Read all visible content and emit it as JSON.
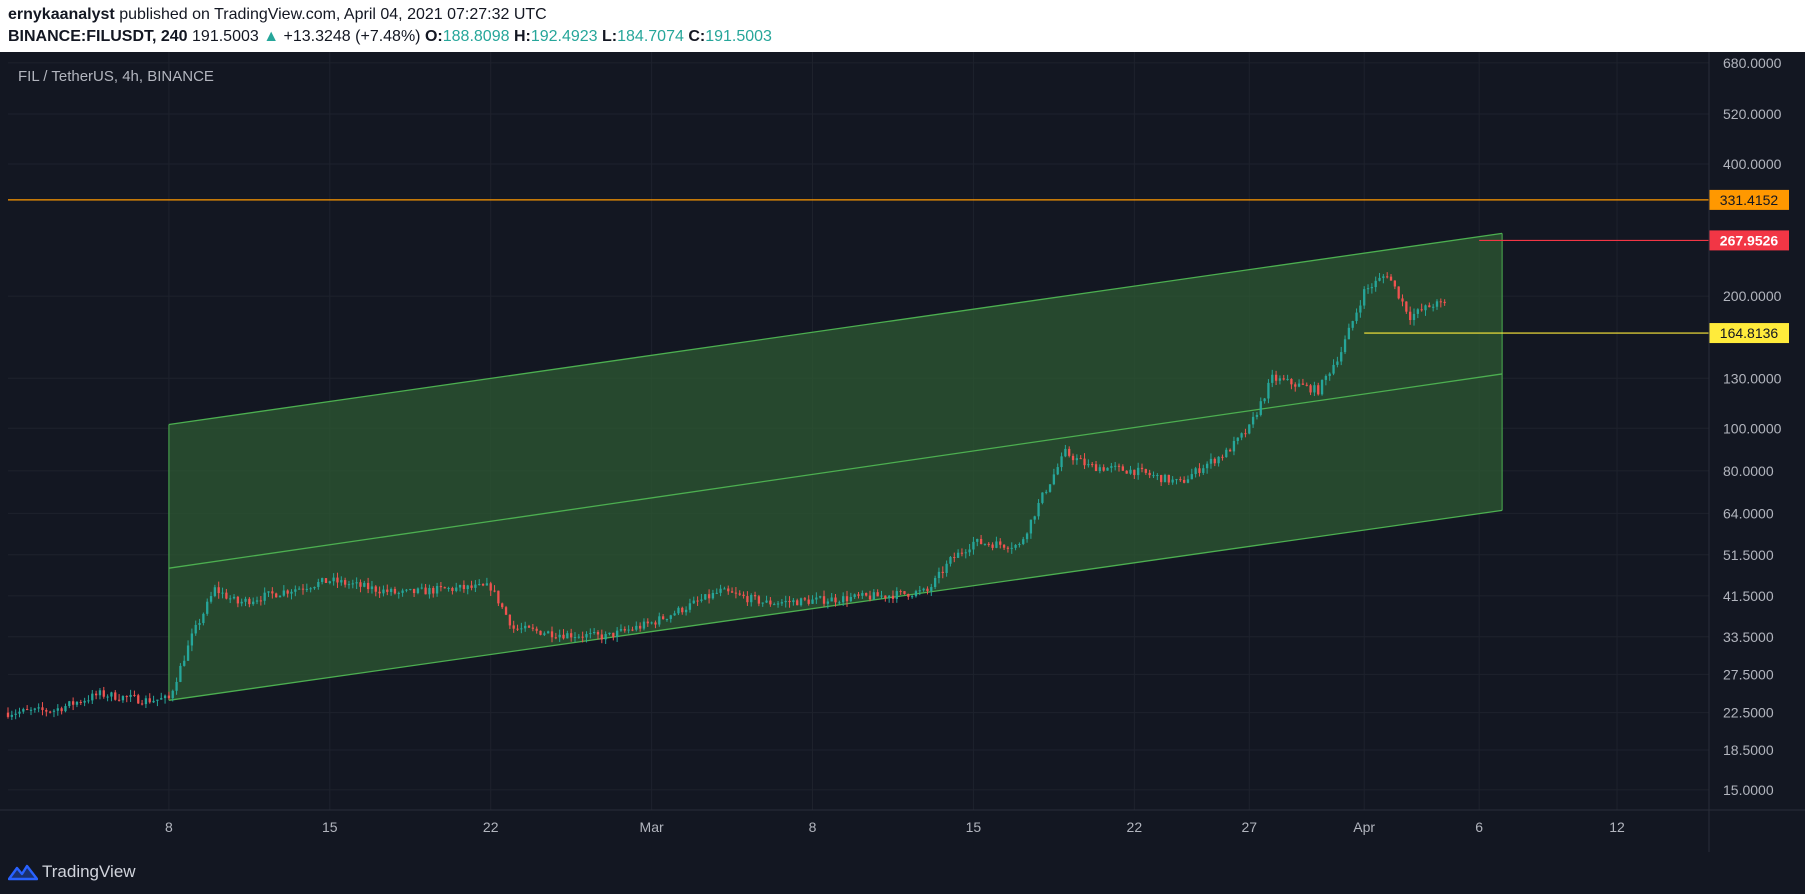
{
  "header": {
    "author": "ernykaanalyst",
    "published_text": "published on TradingView.com, April 04, 2021 07:27:32 UTC",
    "symbol": "BINANCE:FILUSDT, 240",
    "last_price": "191.5003",
    "change": "+13.3248 (+7.48%)",
    "open_label": "O:",
    "open": "188.8098",
    "high_label": "H:",
    "high": "192.4923",
    "low_label": "L:",
    "low": "184.7074",
    "close_label": "C:",
    "close": "191.5003"
  },
  "footer": {
    "brand": "TradingView"
  },
  "colors": {
    "background": "#131722",
    "grid": "#1e222d",
    "up_candle": "#26a69a",
    "down_candle": "#ef5350",
    "channel_line": "#4caf50",
    "channel_fill": "#2e5a33",
    "orange_line": "#ff9800",
    "red_line": "#f23645",
    "yellow_line": "#ffeb3b"
  },
  "chart_data": {
    "type": "candlestick",
    "title": "FIL / TetherUS, 4h, BINANCE",
    "y_scale": "log",
    "ylim": [
      13.5,
      720
    ],
    "y_ticks": [
      "680.0000",
      "520.0000",
      "400.0000",
      "200.0000",
      "130.0000",
      "100.0000",
      "80.0000",
      "64.0000",
      "51.5000",
      "41.5000",
      "33.5000",
      "27.5000",
      "22.5000",
      "18.5000",
      "15.0000"
    ],
    "x_range": [
      "2021-02-01",
      "2021-04-16"
    ],
    "x_ticks": [
      {
        "label": "8",
        "date": "2021-02-08"
      },
      {
        "label": "15",
        "date": "2021-02-15"
      },
      {
        "label": "22",
        "date": "2021-02-22"
      },
      {
        "label": "Mar",
        "date": "2021-03-01"
      },
      {
        "label": "8",
        "date": "2021-03-08"
      },
      {
        "label": "15",
        "date": "2021-03-15"
      },
      {
        "label": "22",
        "date": "2021-03-22"
      },
      {
        "label": "27",
        "date": "2021-03-27"
      },
      {
        "label": "Apr",
        "date": "2021-04-01"
      },
      {
        "label": "6",
        "date": "2021-04-06"
      },
      {
        "label": "12",
        "date": "2021-04-12"
      }
    ],
    "price_path": [
      {
        "date": "2021-02-01",
        "price": 22.5
      },
      {
        "date": "2021-02-03",
        "price": 22.8
      },
      {
        "date": "2021-02-05",
        "price": 24.8
      },
      {
        "date": "2021-02-07",
        "price": 24.0
      },
      {
        "date": "2021-02-08",
        "price": 24.2
      },
      {
        "date": "2021-02-09",
        "price": 33.5
      },
      {
        "date": "2021-02-10",
        "price": 43.0
      },
      {
        "date": "2021-02-11",
        "price": 40.0
      },
      {
        "date": "2021-02-13",
        "price": 42.5
      },
      {
        "date": "2021-02-15",
        "price": 45.0
      },
      {
        "date": "2021-02-16",
        "price": 44.0
      },
      {
        "date": "2021-02-18",
        "price": 42.0
      },
      {
        "date": "2021-02-20",
        "price": 43.0
      },
      {
        "date": "2021-02-22",
        "price": 43.5
      },
      {
        "date": "2021-02-23",
        "price": 35.0
      },
      {
        "date": "2021-02-25",
        "price": 34.0
      },
      {
        "date": "2021-02-27",
        "price": 33.5
      },
      {
        "date": "2021-03-01",
        "price": 36.0
      },
      {
        "date": "2021-03-04",
        "price": 42.5
      },
      {
        "date": "2021-03-06",
        "price": 40.0
      },
      {
        "date": "2021-03-08",
        "price": 40.5
      },
      {
        "date": "2021-03-11",
        "price": 41.5
      },
      {
        "date": "2021-03-13",
        "price": 42.5
      },
      {
        "date": "2021-03-14",
        "price": 50.0
      },
      {
        "date": "2021-03-15",
        "price": 55.0
      },
      {
        "date": "2021-03-17",
        "price": 54.0
      },
      {
        "date": "2021-03-18",
        "price": 70.0
      },
      {
        "date": "2021-03-19",
        "price": 88.0
      },
      {
        "date": "2021-03-20",
        "price": 82.0
      },
      {
        "date": "2021-03-22",
        "price": 80.0
      },
      {
        "date": "2021-03-24",
        "price": 75.0
      },
      {
        "date": "2021-03-25",
        "price": 82.0
      },
      {
        "date": "2021-03-26",
        "price": 88.0
      },
      {
        "date": "2021-03-27",
        "price": 100.0
      },
      {
        "date": "2021-03-28",
        "price": 130.0
      },
      {
        "date": "2021-03-29",
        "price": 126.0
      },
      {
        "date": "2021-03-30",
        "price": 122.0
      },
      {
        "date": "2021-03-31",
        "price": 150.0
      },
      {
        "date": "2021-04-01",
        "price": 205.0
      },
      {
        "date": "2021-04-02",
        "price": 225.0
      },
      {
        "date": "2021-04-03",
        "price": 180.0
      },
      {
        "date": "2021-04-04",
        "price": 191.5
      }
    ],
    "channel": {
      "start_date": "2021-02-08",
      "end_date": "2021-04-07",
      "upper": [
        102.0,
        278.0
      ],
      "middle": [
        48.0,
        133.0
      ],
      "lower": [
        24.0,
        65.0
      ]
    },
    "horizontal_levels": [
      {
        "label": "331.4152",
        "price": 331.4152,
        "color": "#ff9800",
        "start_date": "2021-02-01"
      },
      {
        "label": "267.9526",
        "price": 267.9526,
        "color": "#f23645",
        "start_date": "2021-04-06"
      },
      {
        "label": "164.8136",
        "price": 164.8136,
        "color": "#ffeb3b",
        "start_date": "2021-04-01"
      }
    ]
  }
}
